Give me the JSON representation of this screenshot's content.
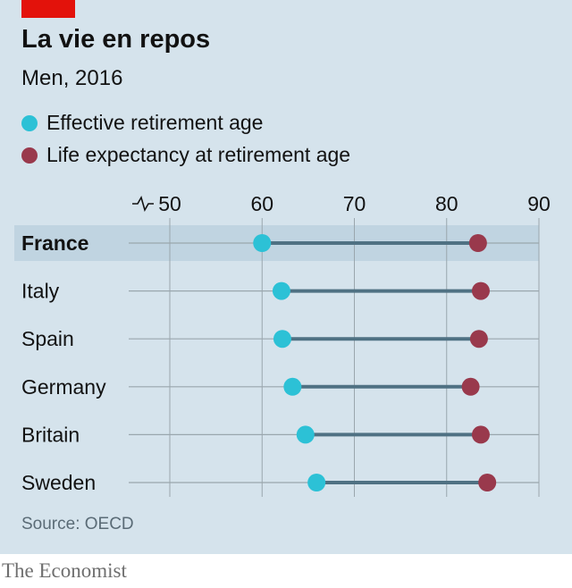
{
  "header": {
    "title": "La vie en repos",
    "subtitle": "Men, 2016"
  },
  "legend": [
    {
      "label": "Effective retirement age",
      "color": "#2cc1d6"
    },
    {
      "label": "Life expectancy at retirement age",
      "color": "#99394c"
    }
  ],
  "footer": {
    "source": "Source: OECD",
    "brand": "The Economist"
  },
  "colors": {
    "background": "#d5e3ec",
    "highlight": "#c0d4e1",
    "connector": "#4f7183",
    "gridline": "#9aa6ad"
  },
  "chart_data": {
    "type": "dot-range",
    "title": "La vie en repos",
    "subtitle": "Men, 2016",
    "x_ticks": [
      50,
      60,
      70,
      80,
      90
    ],
    "xlim": [
      50,
      90
    ],
    "axis_break": true,
    "highlighted_category": "France",
    "categories": [
      "France",
      "Italy",
      "Spain",
      "Germany",
      "Britain",
      "Sweden"
    ],
    "series": [
      {
        "name": "Effective retirement age",
        "values": [
          60.0,
          62.1,
          62.2,
          63.3,
          64.7,
          65.9
        ]
      },
      {
        "name": "Life expectancy at retirement age",
        "values": [
          83.4,
          83.7,
          83.5,
          82.6,
          83.7,
          84.4
        ]
      }
    ],
    "source": "Source: OECD"
  }
}
